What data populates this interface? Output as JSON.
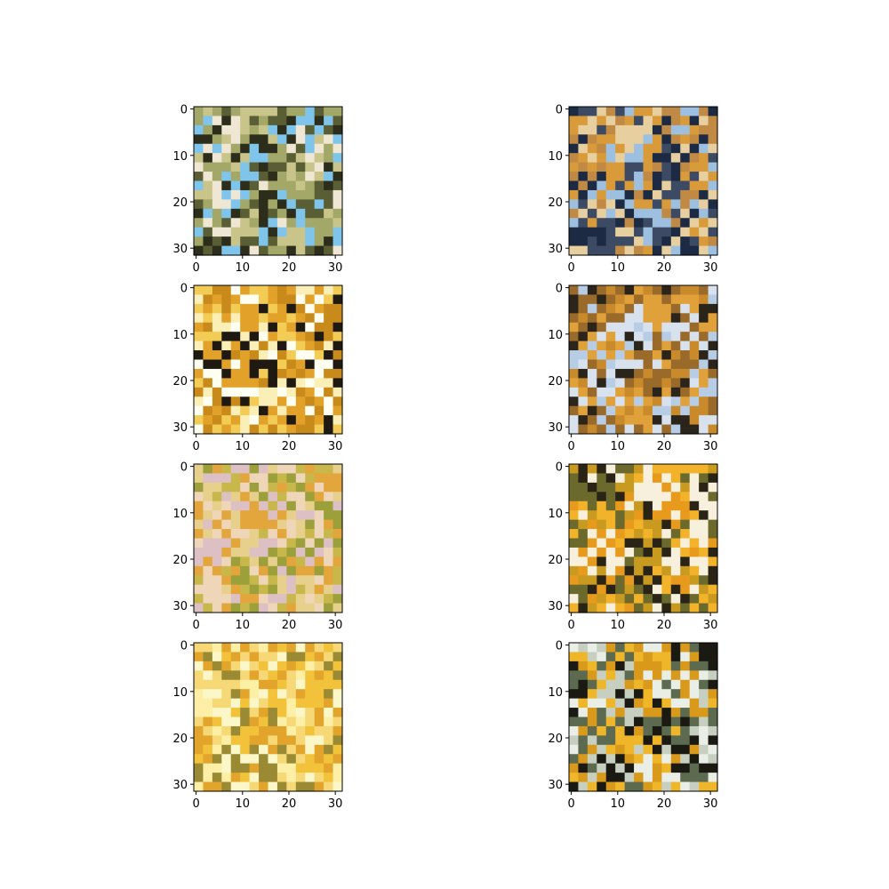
{
  "figure": {
    "layout": {
      "rows": 4,
      "cols": 2
    },
    "tick_color": "#000000",
    "frame_color": "#000000"
  },
  "chart_data": [
    {
      "type": "image",
      "subplot": "1-1",
      "xlim": [
        -0.5,
        31.5
      ],
      "ylim": [
        31.5,
        -0.5
      ],
      "xticks": [
        0,
        10,
        20,
        30
      ],
      "yticks": [
        0,
        10,
        20,
        30
      ],
      "description_colors": [
        "#7fc4ea",
        "#c8c48a",
        "#5a5e34",
        "#efe7d3",
        "#a3a868",
        "#2d2d1b"
      ]
    },
    {
      "type": "image",
      "subplot": "1-2",
      "xlim": [
        -0.5,
        31.5
      ],
      "ylim": [
        31.5,
        -0.5
      ],
      "xticks": [
        0,
        10,
        20,
        30
      ],
      "yticks": [
        0,
        10,
        20,
        30
      ],
      "description_colors": [
        "#1c2a44",
        "#d99b3a",
        "#9dbfe0",
        "#e7cfa0",
        "#3d4a63",
        "#c08a45"
      ]
    },
    {
      "type": "image",
      "subplot": "2-1",
      "xlim": [
        -0.5,
        31.5
      ],
      "ylim": [
        31.5,
        -0.5
      ],
      "xticks": [
        0,
        10,
        20,
        30
      ],
      "yticks": [
        0,
        10,
        20,
        30
      ],
      "description_colors": [
        "#fffff2",
        "#e2a22a",
        "#f3cc55",
        "#1e1a12",
        "#c98a1c",
        "#fbefb8"
      ]
    },
    {
      "type": "image",
      "subplot": "2-2",
      "xlim": [
        -0.5,
        31.5
      ],
      "ylim": [
        31.5,
        -0.5
      ],
      "xticks": [
        0,
        10,
        20,
        30
      ],
      "yticks": [
        0,
        10,
        20,
        30
      ],
      "description_colors": [
        "#b7cde6",
        "#c98a2c",
        "#e0a03a",
        "#2a241a",
        "#d8e2ef",
        "#9a6a2a"
      ]
    },
    {
      "type": "image",
      "subplot": "3-1",
      "xlim": [
        -0.5,
        31.5
      ],
      "ylim": [
        31.5,
        -0.5
      ],
      "xticks": [
        0,
        10,
        20,
        30
      ],
      "yticks": [
        0,
        10,
        20,
        30
      ],
      "description_colors": [
        "#c8b84c",
        "#e7cf8c",
        "#dcc0c4",
        "#e3a63c",
        "#9ba03a",
        "#f0d6b8"
      ]
    },
    {
      "type": "image",
      "subplot": "3-2",
      "xlim": [
        -0.5,
        31.5
      ],
      "ylim": [
        31.5,
        -0.5
      ],
      "xticks": [
        0,
        10,
        20,
        30
      ],
      "yticks": [
        0,
        10,
        20,
        30
      ],
      "description_colors": [
        "#f2b22a",
        "#2a2416",
        "#f7f0dc",
        "#c99a20",
        "#e89a1c",
        "#6b6a2c"
      ]
    },
    {
      "type": "image",
      "subplot": "4-1",
      "xlim": [
        -0.5,
        31.5
      ],
      "ylim": [
        31.5,
        -0.5
      ],
      "xticks": [
        0,
        10,
        20,
        30
      ],
      "yticks": [
        0,
        10,
        20,
        30
      ],
      "description_colors": [
        "#fbf7c8",
        "#f2c33a",
        "#e3a42c",
        "#fdf0a6",
        "#9b8a34",
        "#f6d976"
      ]
    },
    {
      "type": "image",
      "subplot": "4-2",
      "xlim": [
        -0.5,
        31.5
      ],
      "ylim": [
        31.5,
        -0.5
      ],
      "xticks": [
        0,
        10,
        20,
        30
      ],
      "yticks": [
        0,
        10,
        20,
        30
      ],
      "description_colors": [
        "#f0b62a",
        "#1a1a12",
        "#e9eee6",
        "#c7cfc0",
        "#d99a1c",
        "#5c6a50"
      ]
    }
  ]
}
